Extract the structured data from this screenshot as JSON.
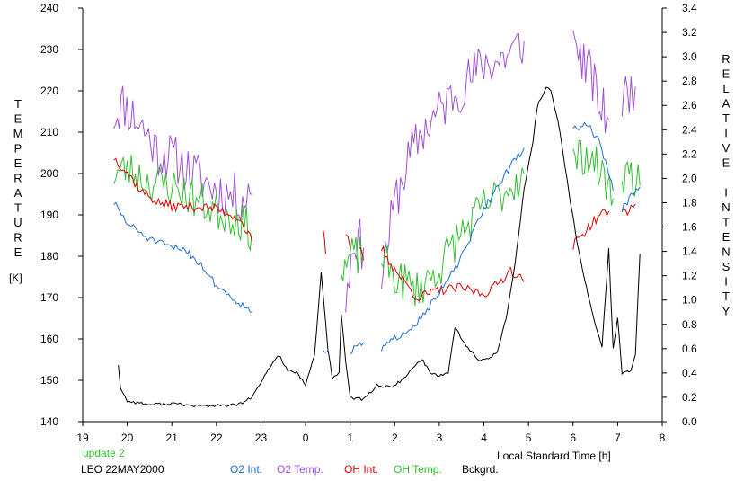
{
  "chart_data": {
    "type": "line",
    "xlabel": "Local Standard Time [h]",
    "ylabel_left": "TEMPERATURE",
    "ylabel_left_unit": "[K]",
    "ylabel_right": "RELATIVE INTENSITY",
    "x_ticks": [
      19,
      20,
      21,
      22,
      23,
      24,
      25,
      26,
      27,
      28,
      29,
      30,
      31,
      32
    ],
    "x_tick_labels": [
      "19",
      "20",
      "21",
      "22",
      "23",
      "0",
      "1",
      "2",
      "3",
      "4",
      "5",
      "6",
      "7",
      "8"
    ],
    "xlim": [
      19,
      32
    ],
    "ylim_left": [
      140,
      240
    ],
    "y_ticks_left": [
      "140",
      "150",
      "160",
      "170",
      "180",
      "190",
      "200",
      "210",
      "220",
      "230",
      "240"
    ],
    "ylim_right": [
      0.0,
      3.4
    ],
    "y_ticks_right": [
      "0.0",
      "0.2",
      "0.4",
      "0.6",
      "0.8",
      "1.0",
      "1.2",
      "1.4",
      "1.6",
      "1.8",
      "2.0",
      "2.2",
      "2.4",
      "2.6",
      "2.8",
      "3.0",
      "3.2",
      "3.4"
    ],
    "update_note": "update 2",
    "station_date": "LEO 22MAY2000",
    "legend": [
      {
        "key": "o2int",
        "label": "O2 Int.",
        "color": "#1f6fd0"
      },
      {
        "key": "o2temp",
        "label": "O2 Temp.",
        "color": "#a050d8"
      },
      {
        "key": "ohint",
        "label": "OH Int.",
        "color": "#e00000"
      },
      {
        "key": "ohtemp",
        "label": "OH Temp.",
        "color": "#30c030"
      },
      {
        "key": "bkg",
        "label": "Bckgrd.",
        "color": "#000000"
      }
    ],
    "series": [
      {
        "key": "o2temp",
        "axis": "left",
        "color": "#a050d8",
        "noise": 6,
        "seed": 11,
        "segments": [
          [
            [
              19.7,
              214
            ],
            [
              19.9,
              217
            ],
            [
              20.3,
              212
            ],
            [
              20.7,
              205
            ],
            [
              21.0,
              204
            ],
            [
              21.5,
              200
            ],
            [
              22.0,
              196
            ],
            [
              22.5,
              194
            ],
            [
              22.8,
              195
            ]
          ],
          [
            [
              24.9,
              170
            ],
            [
              25.1,
              185
            ],
            [
              25.3,
              182
            ]
          ],
          [
            [
              25.7,
              175
            ],
            [
              26.0,
              193
            ],
            [
              26.3,
              203
            ],
            [
              26.6,
              210
            ],
            [
              27.0,
              215
            ],
            [
              27.3,
              219
            ],
            [
              27.7,
              223
            ],
            [
              28.0,
              227
            ],
            [
              28.3,
              227
            ],
            [
              28.7,
              230
            ],
            [
              28.9,
              232
            ]
          ],
          [
            [
              30.0,
              232
            ],
            [
              30.2,
              228
            ],
            [
              30.4,
              224
            ],
            [
              30.6,
              216
            ],
            [
              30.8,
              213
            ]
          ],
          [
            [
              31.1,
              218
            ],
            [
              31.3,
              220
            ],
            [
              31.4,
              221
            ]
          ]
        ]
      },
      {
        "key": "ohtemp",
        "axis": "left",
        "color": "#30c030",
        "noise": 5,
        "seed": 23,
        "segments": [
          [
            [
              19.7,
              200
            ],
            [
              20.0,
              201
            ],
            [
              20.5,
              198
            ],
            [
              21.0,
              197
            ],
            [
              21.5,
              194
            ],
            [
              22.0,
              191
            ],
            [
              22.5,
              189
            ],
            [
              22.8,
              186
            ]
          ],
          [
            [
              24.8,
              175
            ],
            [
              25.0,
              180
            ],
            [
              25.3,
              180
            ]
          ],
          [
            [
              25.7,
              180
            ],
            [
              26.0,
              175
            ],
            [
              26.5,
              172
            ],
            [
              27.0,
              177
            ],
            [
              27.3,
              183
            ],
            [
              27.7,
              188
            ],
            [
              28.0,
              192
            ],
            [
              28.5,
              196
            ],
            [
              28.9,
              200
            ]
          ],
          [
            [
              30.0,
              203
            ],
            [
              30.3,
              205
            ],
            [
              30.7,
              199
            ],
            [
              30.9,
              194
            ]
          ],
          [
            [
              31.1,
              200
            ],
            [
              31.3,
              200
            ],
            [
              31.5,
              197
            ]
          ]
        ]
      },
      {
        "key": "ohint",
        "axis": "right",
        "color": "#e00000",
        "noise": 0.04,
        "seed": 37,
        "segments": [
          [
            [
              19.7,
              2.17
            ],
            [
              20.0,
              2.05
            ],
            [
              20.3,
              1.9
            ],
            [
              20.7,
              1.8
            ],
            [
              21.0,
              1.77
            ],
            [
              21.5,
              1.77
            ],
            [
              22.0,
              1.75
            ],
            [
              22.5,
              1.68
            ],
            [
              22.8,
              1.48
            ]
          ],
          [
            [
              24.4,
              1.55
            ],
            [
              24.45,
              1.38
            ]
          ],
          [
            [
              24.9,
              1.55
            ],
            [
              25.0,
              1.43
            ]
          ],
          [
            [
              25.2,
              1.45
            ],
            [
              25.3,
              1.33
            ]
          ],
          [
            [
              25.7,
              1.43
            ],
            [
              26.0,
              1.25
            ],
            [
              26.5,
              1.02
            ],
            [
              27.0,
              1.08
            ],
            [
              27.5,
              1.1
            ],
            [
              28.0,
              1.05
            ],
            [
              28.3,
              1.13
            ],
            [
              28.6,
              1.25
            ],
            [
              28.9,
              1.15
            ]
          ],
          [
            [
              30.0,
              1.45
            ],
            [
              30.3,
              1.58
            ],
            [
              30.6,
              1.7
            ],
            [
              30.8,
              1.73
            ]
          ],
          [
            [
              31.1,
              1.72
            ],
            [
              31.3,
              1.75
            ],
            [
              31.4,
              1.79
            ]
          ]
        ]
      },
      {
        "key": "o2int",
        "axis": "right",
        "color": "#1f6fd0",
        "noise": 0.03,
        "seed": 51,
        "segments": [
          [
            [
              19.7,
              1.8
            ],
            [
              20.0,
              1.63
            ],
            [
              20.5,
              1.5
            ],
            [
              21.0,
              1.43
            ],
            [
              21.3,
              1.42
            ],
            [
              21.7,
              1.27
            ],
            [
              22.0,
              1.12
            ],
            [
              22.5,
              0.98
            ],
            [
              22.8,
              0.9
            ]
          ],
          [
            [
              24.4,
              0.6
            ],
            [
              24.5,
              0.58
            ]
          ],
          [
            [
              25.0,
              0.57
            ],
            [
              25.3,
              0.65
            ]
          ],
          [
            [
              25.7,
              0.6
            ],
            [
              26.0,
              0.68
            ],
            [
              26.5,
              0.82
            ],
            [
              27.0,
              1.05
            ],
            [
              27.5,
              1.35
            ],
            [
              28.0,
              1.75
            ],
            [
              28.5,
              2.05
            ],
            [
              28.9,
              2.25
            ]
          ],
          [
            [
              30.0,
              2.4
            ],
            [
              30.3,
              2.45
            ],
            [
              30.6,
              2.3
            ],
            [
              30.9,
              1.9
            ]
          ],
          [
            [
              31.1,
              1.75
            ],
            [
              31.3,
              1.85
            ],
            [
              31.5,
              1.93
            ]
          ]
        ]
      },
      {
        "key": "bkg",
        "axis": "right",
        "color": "#000000",
        "noise": 0.012,
        "seed": 77,
        "segments": [
          [
            [
              19.8,
              0.47
            ],
            [
              19.85,
              0.27
            ],
            [
              20.0,
              0.17
            ],
            [
              20.5,
              0.14
            ],
            [
              21.0,
              0.15
            ],
            [
              21.5,
              0.13
            ],
            [
              22.0,
              0.13
            ],
            [
              22.5,
              0.14
            ],
            [
              22.8,
              0.2
            ],
            [
              23.0,
              0.32
            ],
            [
              23.2,
              0.45
            ],
            [
              23.4,
              0.55
            ],
            [
              23.6,
              0.42
            ],
            [
              23.8,
              0.4
            ],
            [
              24.0,
              0.3
            ],
            [
              24.2,
              0.55
            ],
            [
              24.35,
              1.22
            ],
            [
              24.5,
              0.6
            ],
            [
              24.6,
              0.35
            ],
            [
              24.75,
              0.4
            ],
            [
              24.8,
              0.88
            ],
            [
              24.9,
              0.5
            ],
            [
              25.0,
              0.2
            ],
            [
              25.3,
              0.18
            ],
            [
              25.6,
              0.3
            ],
            [
              25.9,
              0.28
            ],
            [
              26.2,
              0.35
            ],
            [
              26.6,
              0.52
            ],
            [
              26.8,
              0.4
            ],
            [
              27.0,
              0.38
            ],
            [
              27.2,
              0.4
            ],
            [
              27.35,
              0.78
            ],
            [
              27.6,
              0.62
            ],
            [
              27.9,
              0.5
            ],
            [
              28.1,
              0.52
            ],
            [
              28.3,
              0.58
            ],
            [
              28.5,
              0.85
            ],
            [
              28.7,
              1.3
            ],
            [
              28.9,
              1.9
            ],
            [
              29.1,
              2.3
            ],
            [
              29.2,
              2.6
            ],
            [
              29.4,
              2.75
            ],
            [
              29.5,
              2.72
            ],
            [
              29.7,
              2.4
            ],
            [
              29.9,
              1.9
            ],
            [
              30.1,
              1.45
            ],
            [
              30.3,
              1.1
            ],
            [
              30.5,
              0.8
            ],
            [
              30.65,
              0.62
            ],
            [
              30.8,
              1.42
            ],
            [
              30.9,
              0.6
            ],
            [
              31.0,
              0.85
            ],
            [
              31.1,
              0.4
            ],
            [
              31.3,
              0.42
            ],
            [
              31.4,
              0.55
            ],
            [
              31.5,
              1.38
            ]
          ]
        ]
      }
    ]
  }
}
